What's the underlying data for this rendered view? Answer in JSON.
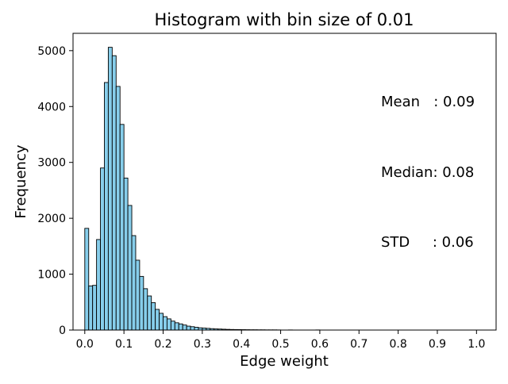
{
  "chart_data": {
    "type": "bar",
    "title": "Histogram with bin size of 0.01",
    "xlabel": "Edge weight",
    "ylabel": "Frequency",
    "xlim": [
      -0.03,
      1.05
    ],
    "ylim": [
      0,
      5310
    ],
    "xticks": [
      0.0,
      0.1,
      0.2,
      0.3,
      0.4,
      0.5,
      0.6,
      0.7,
      0.8,
      0.9,
      1.0
    ],
    "xtick_labels": [
      "0.0",
      "0.1",
      "0.2",
      "0.3",
      "0.4",
      "0.5",
      "0.6",
      "0.7",
      "0.8",
      "0.9",
      "1.0"
    ],
    "yticks": [
      0,
      1000,
      2000,
      3000,
      4000,
      5000
    ],
    "ytick_labels": [
      "0",
      "1000",
      "2000",
      "3000",
      "4000",
      "5000"
    ],
    "bin_width": 0.01,
    "bin_starts": [
      0.0,
      0.01,
      0.02,
      0.03,
      0.04,
      0.05,
      0.06,
      0.07,
      0.08,
      0.09,
      0.1,
      0.11,
      0.12,
      0.13,
      0.14,
      0.15,
      0.16,
      0.17,
      0.18,
      0.19,
      0.2,
      0.21,
      0.22,
      0.23,
      0.24,
      0.25,
      0.26,
      0.27,
      0.28,
      0.29,
      0.3,
      0.31,
      0.32,
      0.33,
      0.34,
      0.35,
      0.36,
      0.37,
      0.38,
      0.39,
      0.4,
      0.41,
      0.42,
      0.43,
      0.44,
      0.45,
      0.46,
      0.47,
      0.48,
      0.49,
      0.5,
      0.51,
      0.52,
      0.53,
      0.54,
      0.55,
      0.56,
      0.57,
      0.58,
      0.59
    ],
    "values": [
      1820,
      790,
      800,
      1620,
      2900,
      4430,
      5060,
      4910,
      4360,
      3680,
      2720,
      2230,
      1690,
      1250,
      960,
      740,
      610,
      490,
      370,
      300,
      240,
      200,
      160,
      130,
      110,
      90,
      70,
      60,
      50,
      40,
      35,
      30,
      25,
      20,
      18,
      15,
      12,
      10,
      9,
      8,
      7,
      6,
      5,
      5,
      4,
      4,
      3,
      3,
      3,
      2,
      0,
      0,
      2,
      0,
      0,
      0,
      0,
      0,
      0,
      2
    ],
    "grid": false,
    "colors": {
      "bar_fill": "#87ceeb",
      "bar_edge": "#000000"
    },
    "annotation": {
      "lines": [
        "Mean   : 0.09",
        "Median: 0.08",
        "STD     : 0.06"
      ]
    }
  }
}
